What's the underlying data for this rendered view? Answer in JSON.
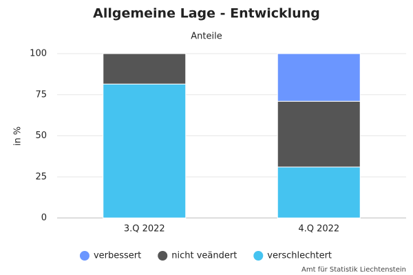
{
  "chart_data": {
    "type": "stacked_bar",
    "title": "Allgemeine Lage - Entwicklung",
    "subtitle": "Anteile",
    "y_label": "in %",
    "credit": "Amt für Statistik Liechtenstein",
    "categories": [
      "3.Q 2022",
      "4.Q 2022"
    ],
    "series": [
      {
        "name": "verbessert",
        "color": "#6b96ff",
        "values": [
          0,
          29
        ]
      },
      {
        "name": "nicht veändert",
        "color": "#555555",
        "values": [
          18.5,
          40
        ]
      },
      {
        "name": "verschlechtert",
        "color": "#45c3f0",
        "values": [
          81.5,
          31
        ]
      }
    ],
    "ylim": [
      0,
      100
    ],
    "yticks": [
      0,
      25,
      50,
      75,
      100
    ],
    "grid": true
  }
}
